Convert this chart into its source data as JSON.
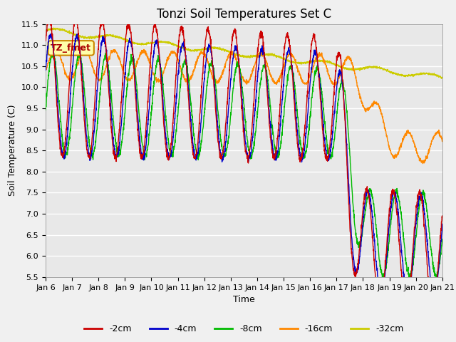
{
  "title": "Tonzi Soil Temperatures Set C",
  "xlabel": "Time",
  "ylabel": "Soil Temperature (C)",
  "ylim": [
    5.5,
    11.5
  ],
  "xlim": [
    0,
    15
  ],
  "legend_labels": [
    "-2cm",
    "-4cm",
    "-8cm",
    "-16cm",
    "-32cm"
  ],
  "legend_colors": [
    "#cc0000",
    "#0000cc",
    "#00bb00",
    "#ff8800",
    "#cccc00"
  ],
  "annotation_text": "TZ_fmet",
  "annotation_bg": "#ffffaa",
  "annotation_border": "#cc8800",
  "annotation_text_color": "#aa0000",
  "fig_bg": "#f0f0f0",
  "plot_bg": "#e8e8e8",
  "grid_color": "#ffffff",
  "n_days": 15,
  "start_day": 6,
  "ppd": 144,
  "title_fontsize": 12,
  "axis_label_fontsize": 9,
  "tick_label_fontsize": 8
}
